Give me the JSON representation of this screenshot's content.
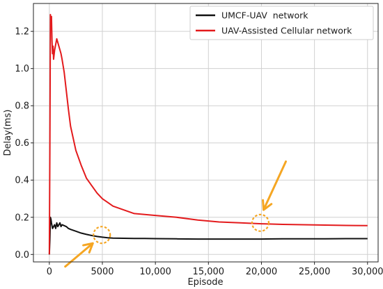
{
  "chart_data": {
    "type": "line",
    "title": "",
    "xlabel": "Episode",
    "ylabel": "Delay(ms)",
    "xlim": [
      -1500,
      31000
    ],
    "ylim": [
      -0.04,
      1.35
    ],
    "grid": true,
    "legend_position": "top-right",
    "x_ticks": [
      0,
      5000,
      10000,
      15000,
      20000,
      25000,
      30000
    ],
    "x_tick_labels": [
      "0",
      "5000",
      "10,000",
      "15,000",
      "20,000",
      "25,000",
      "30,000"
    ],
    "y_ticks": [
      0.0,
      0.2,
      0.4,
      0.6,
      0.8,
      1.0,
      1.2
    ],
    "y_tick_labels": [
      "0.0",
      "0.2",
      "0.4",
      "0.6",
      "0.8",
      "1.0",
      "1.2"
    ],
    "series": [
      {
        "name": "UMCF-UAV  network",
        "color": "#111111",
        "x": [
          0,
          50,
          100,
          150,
          200,
          300,
          400,
          500,
          600,
          700,
          800,
          900,
          1000,
          1100,
          1200,
          1400,
          1600,
          1800,
          2000,
          2500,
          3000,
          3500,
          4000,
          4500,
          5000,
          5500,
          6000,
          7000,
          8000,
          9000,
          10000,
          12000,
          14000,
          16000,
          18000,
          20000,
          22000,
          24000,
          26000,
          28000,
          30000
        ],
        "y": [
          0.0,
          0.08,
          0.2,
          0.19,
          0.17,
          0.14,
          0.15,
          0.16,
          0.14,
          0.17,
          0.15,
          0.16,
          0.17,
          0.15,
          0.16,
          0.155,
          0.15,
          0.14,
          0.135,
          0.125,
          0.115,
          0.108,
          0.102,
          0.097,
          0.093,
          0.09,
          0.088,
          0.087,
          0.086,
          0.086,
          0.085,
          0.084,
          0.083,
          0.083,
          0.083,
          0.083,
          0.084,
          0.084,
          0.084,
          0.085,
          0.085
        ]
      },
      {
        "name": "UAV-Assisted Cellular network",
        "color": "#e31a1c",
        "x": [
          0,
          50,
          100,
          150,
          200,
          250,
          300,
          350,
          400,
          500,
          600,
          700,
          800,
          900,
          1000,
          1100,
          1200,
          1400,
          1600,
          1800,
          2000,
          2500,
          3000,
          3500,
          4000,
          4500,
          5000,
          5500,
          6000,
          7000,
          8000,
          9000,
          10000,
          12000,
          14000,
          16000,
          18000,
          20000,
          22000,
          24000,
          26000,
          28000,
          30000
        ],
        "y": [
          0.0,
          0.55,
          1.29,
          1.22,
          1.28,
          1.15,
          1.08,
          1.12,
          1.05,
          1.1,
          1.13,
          1.16,
          1.14,
          1.12,
          1.1,
          1.08,
          1.05,
          0.98,
          0.88,
          0.78,
          0.69,
          0.56,
          0.48,
          0.41,
          0.37,
          0.33,
          0.3,
          0.28,
          0.26,
          0.24,
          0.22,
          0.215,
          0.21,
          0.2,
          0.185,
          0.175,
          0.17,
          0.165,
          0.162,
          0.16,
          0.158,
          0.156,
          0.155
        ]
      }
    ],
    "annotations": [
      {
        "type": "dashed-circle",
        "color": "#f5a623",
        "x": 4950,
        "y": 0.105
      },
      {
        "type": "dashed-circle",
        "color": "#f5a623",
        "x": 19900,
        "y": 0.17
      },
      {
        "type": "arrow",
        "color": "#f5a623",
        "from": [
          1500,
          -0.065
        ],
        "to": [
          4100,
          0.06
        ]
      },
      {
        "type": "arrow",
        "color": "#f5a623",
        "from": [
          22300,
          0.5
        ],
        "to": [
          20200,
          0.24
        ]
      }
    ]
  }
}
